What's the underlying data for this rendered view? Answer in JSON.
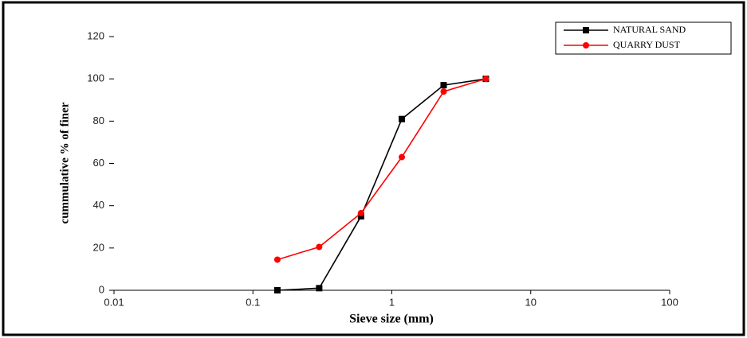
{
  "chart_data": {
    "type": "line",
    "x_label": "Sieve size (mm)",
    "y_label": "cummulative % of finer",
    "x": [
      0.15,
      0.3,
      0.6,
      1.18,
      2.36,
      4.75
    ],
    "series": [
      {
        "name": "NATURAL SAND",
        "color": "#000000",
        "marker": "square",
        "values": [
          0,
          1,
          35,
          81,
          97,
          100
        ]
      },
      {
        "name": "QUARRY DUST",
        "color": "#ff0000",
        "marker": "circle",
        "values": [
          14.5,
          20.5,
          36.5,
          63,
          94,
          100
        ]
      }
    ],
    "x_log": true,
    "xlim": [
      0.01,
      100
    ],
    "xticks": [
      0.01,
      0.1,
      1,
      10,
      100
    ],
    "ylim": [
      0,
      120
    ],
    "yticks": [
      0,
      20,
      40,
      60,
      80,
      100,
      120
    ],
    "legend": "top-right"
  }
}
